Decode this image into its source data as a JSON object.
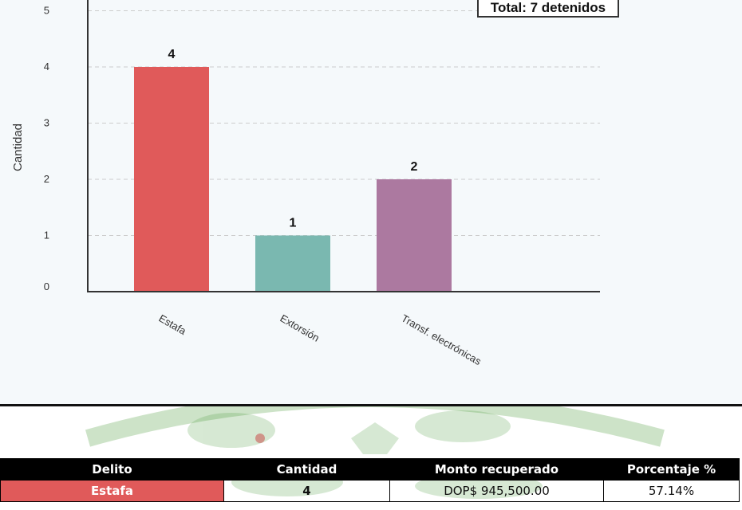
{
  "colors": {
    "estafa": "#e05a5a",
    "extorsion": "#7ab8b0",
    "transf": "#ac79a0",
    "axis": "#333333",
    "grid": "#cccccc",
    "emblem": "#4a9a3a"
  },
  "chart_data": {
    "type": "bar",
    "title": "",
    "xlabel": "",
    "ylabel": "Cantidad",
    "categories": [
      "Estafa",
      "Extorsión",
      "Transf. electrónicas"
    ],
    "values": [
      4,
      1,
      2
    ],
    "value_labels": [
      "4",
      "1",
      "2"
    ],
    "ylim": [
      0,
      5
    ],
    "yticks": [
      0,
      1,
      2,
      3,
      4,
      5
    ],
    "ytick_labels": [
      "0",
      "1",
      "2",
      "3",
      "4",
      "5"
    ],
    "grid": true,
    "legend": "none",
    "annotation": "Total: 7 detenidos"
  },
  "table": {
    "headers": [
      "Delito",
      "Cantidad",
      "Monto recuperado",
      "Porcentaje %"
    ],
    "rows": [
      [
        "Estafa",
        "4",
        "DOP$ 945,500.00",
        "57.14%"
      ]
    ]
  }
}
